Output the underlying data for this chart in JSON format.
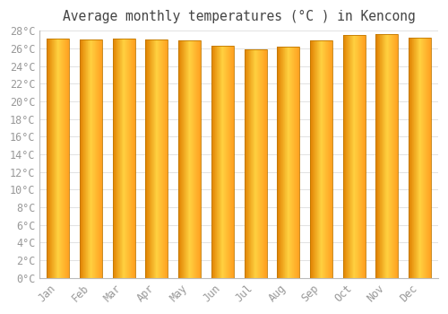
{
  "title": "Average monthly temperatures (°C ) in Kencong",
  "months": [
    "Jan",
    "Feb",
    "Mar",
    "Apr",
    "May",
    "Jun",
    "Jul",
    "Aug",
    "Sep",
    "Oct",
    "Nov",
    "Dec"
  ],
  "values": [
    27.1,
    27.0,
    27.1,
    27.0,
    26.9,
    26.3,
    25.9,
    26.2,
    26.9,
    27.5,
    27.6,
    27.2
  ],
  "bar_color_left": "#E08000",
  "bar_color_center": "#FFD040",
  "bar_color_right": "#FFA000",
  "bar_edge_color": "#C07800",
  "background_color": "#FFFFFF",
  "plot_bg_color": "#FFFFFF",
  "grid_color": "#DDDDDD",
  "tick_label_color": "#999999",
  "title_color": "#444444",
  "ylim": [
    0,
    28
  ],
  "ytick_step": 2,
  "title_fontsize": 10.5,
  "tick_fontsize": 8.5,
  "bar_width": 0.68
}
